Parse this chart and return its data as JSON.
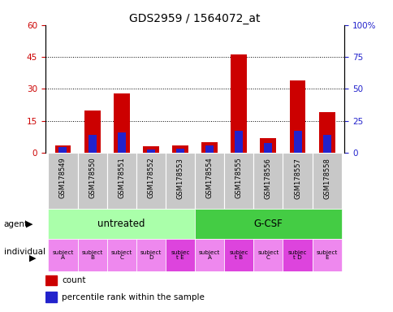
{
  "title": "GDS2959 / 1564072_at",
  "samples": [
    "GSM178549",
    "GSM178550",
    "GSM178551",
    "GSM178552",
    "GSM178553",
    "GSM178554",
    "GSM178555",
    "GSM178556",
    "GSM178557",
    "GSM178558"
  ],
  "count_values": [
    3.5,
    20,
    28,
    3,
    3.5,
    5,
    46,
    7,
    34,
    19
  ],
  "percentile_values": [
    4.5,
    14,
    16,
    2.5,
    3,
    6,
    17,
    8,
    17,
    14
  ],
  "ylim_left": [
    0,
    60
  ],
  "ylim_right": [
    0,
    100
  ],
  "yticks_left": [
    0,
    15,
    30,
    45,
    60
  ],
  "yticks_right": [
    0,
    25,
    50,
    75,
    100
  ],
  "ytick_labels_left": [
    "0",
    "15",
    "30",
    "45",
    "60"
  ],
  "ytick_labels_right": [
    "0",
    "25",
    "50",
    "75",
    "100%"
  ],
  "agent_groups": [
    {
      "label": "untreated",
      "start": 0,
      "end": 4,
      "color": "#90ee90"
    },
    {
      "label": "G-CSF",
      "start": 5,
      "end": 9,
      "color": "#3cb371"
    }
  ],
  "individual_labels": [
    "subject\nA",
    "subject\nB",
    "subject\nC",
    "subject\nD",
    "subjec\nt E",
    "subject\nA",
    "subjec\nt B",
    "subject\nC",
    "subjec\nt D",
    "subject\nE"
  ],
  "individual_highlighted": [
    4,
    6,
    8
  ],
  "bar_color_red": "#cc0000",
  "bar_color_blue": "#2222cc",
  "bg_color_sample": "#c8c8c8",
  "bg_color_agent_light": "#aaffaa",
  "bg_color_agent_dark": "#44cc44",
  "bg_color_indiv_normal": "#ee88ee",
  "bg_color_indiv_highlight": "#dd44dd"
}
